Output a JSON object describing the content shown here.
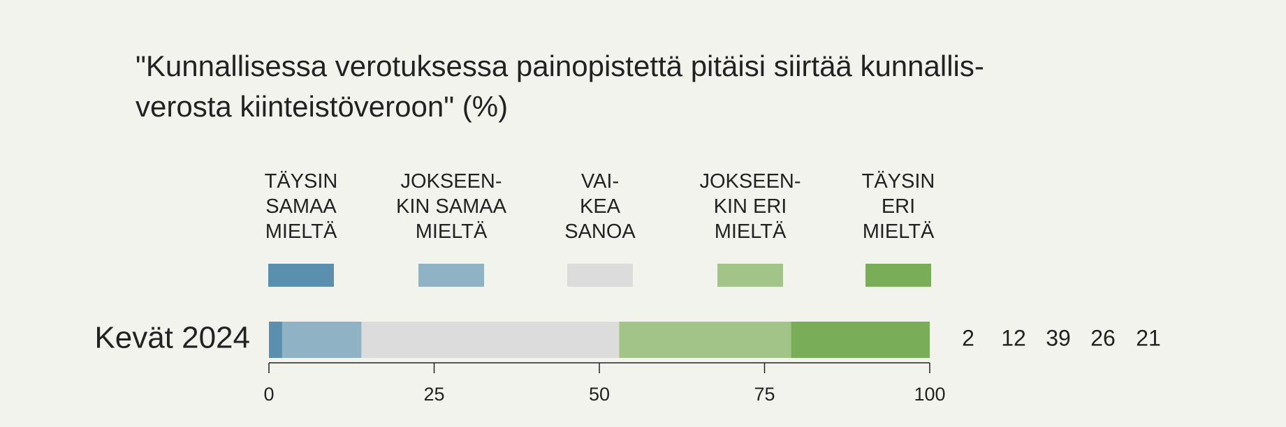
{
  "chart_data": {
    "type": "stacked-bar",
    "title": "\"Kunnallisessa verotuksessa painopistettä pitäisi siirtää kunnallis-\n verosta kiinteistöveroon\" (%)",
    "categories": [
      "Kevät 2024"
    ],
    "series": [
      {
        "name": "TÄYSIN\nSAMAA\nMIELTÄ",
        "color": "#5b8fae",
        "values": [
          2
        ]
      },
      {
        "name": "JOKSEEN-\nKIN SAMAA\nMIELTÄ",
        "color": "#8fb2c5",
        "values": [
          12
        ]
      },
      {
        "name": "VAI-\nKEA\nSANOA",
        "color": "#dcdcdc",
        "values": [
          39
        ]
      },
      {
        "name": "JOKSEEN-\nKIN ERI\nMIELTÄ",
        "color": "#a3c488",
        "values": [
          26
        ]
      },
      {
        "name": "TÄYSIN\nERI\nMIELTÄ",
        "color": "#7aad58",
        "values": [
          21
        ]
      }
    ],
    "xlim": [
      0,
      100
    ],
    "xticks": [
      0,
      25,
      50,
      75,
      100
    ]
  }
}
